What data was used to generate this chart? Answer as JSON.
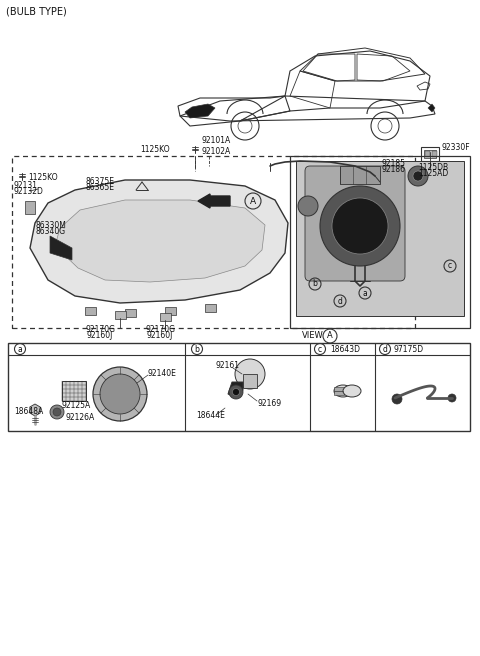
{
  "bg_color": "#ffffff",
  "line_color": "#333333",
  "text_color": "#111111",
  "title": "(BULB TYPE)",
  "labels": {
    "bolt_top": "1125KO",
    "headlight_top": "92101A\n92102A",
    "corner1": "86375E\n86365E",
    "corner2": "86330M\n86340G",
    "left_bolt": "1125KO",
    "screw_label": "92131\n92132D",
    "bottom1": "92170G\n92160J",
    "bottom2": "92170G\n92160J",
    "right_conn": "92330F",
    "right_mid1": "92185\n92186",
    "right_mid2": "1125DB\n1125AD",
    "view": "VIEW",
    "hdr_c": "18643D",
    "hdr_d": "97175D",
    "box_a_1": "92140E",
    "box_a_2": "92125A",
    "box_a_3": "18648A",
    "box_a_4": "92126A",
    "box_b_1": "92161",
    "box_b_2": "92169",
    "box_b_3": "18644E"
  },
  "font_size": 6.0,
  "small_font": 5.5
}
